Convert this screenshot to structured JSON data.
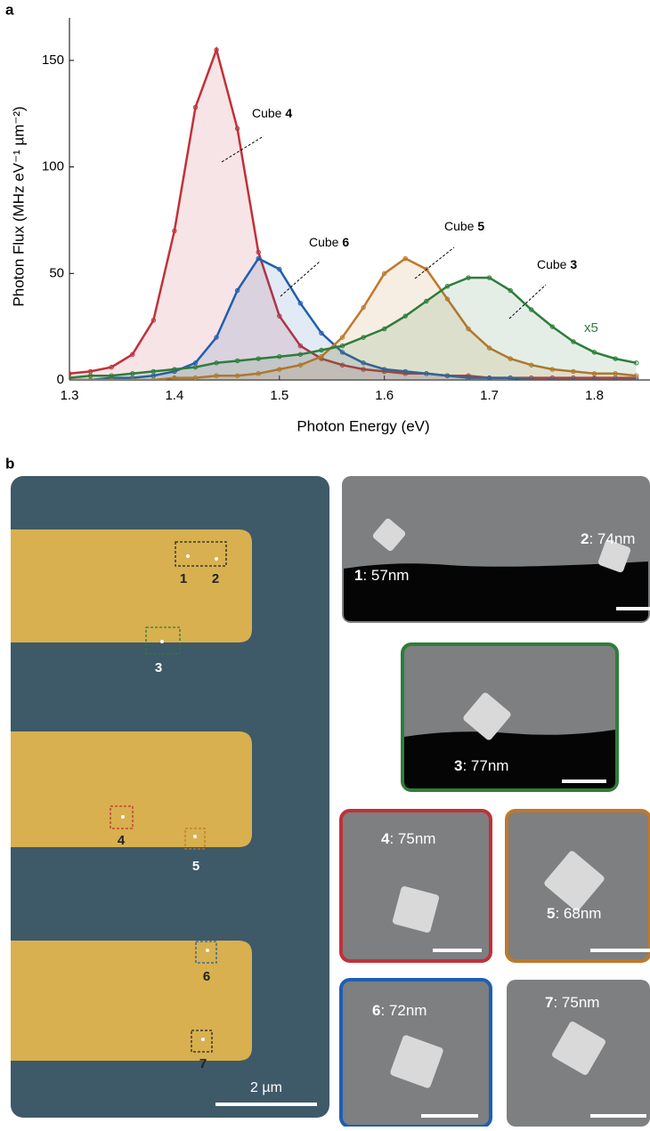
{
  "panel_labels": [
    "a",
    "b"
  ],
  "chart_data": {
    "type": "line",
    "x_label": "Photon Energy (eV)",
    "y_label": "Photon Flux (MHz eV⁻¹ µm⁻²)",
    "xlim": [
      1.3,
      1.853
    ],
    "ylim": [
      0,
      170
    ],
    "xticks": [
      1.3,
      1.4,
      1.5,
      1.6,
      1.7,
      1.8
    ],
    "yticks": [
      0,
      50,
      100,
      150
    ],
    "x": [
      1.3,
      1.32,
      1.34,
      1.36,
      1.38,
      1.4,
      1.42,
      1.44,
      1.46,
      1.48,
      1.5,
      1.52,
      1.54,
      1.56,
      1.58,
      1.6,
      1.62,
      1.64,
      1.66,
      1.68,
      1.7,
      1.72,
      1.74,
      1.76,
      1.78,
      1.8,
      1.82,
      1.84
    ],
    "series": [
      {
        "color": "#c0313a",
        "values": [
          3,
          4,
          6,
          12,
          28,
          70,
          128,
          155,
          118,
          60,
          30,
          16,
          10,
          7,
          5,
          4,
          3,
          3,
          2,
          2,
          1,
          1,
          1,
          1,
          1,
          1,
          1,
          1
        ]
      },
      {
        "color": "#1f5fb0",
        "values": [
          0,
          0,
          1,
          1,
          2,
          4,
          8,
          20,
          42,
          57,
          52,
          36,
          22,
          13,
          8,
          5,
          4,
          3,
          2,
          1,
          1,
          1,
          0,
          0,
          0,
          0,
          0,
          0
        ]
      },
      {
        "color": "#c0782a",
        "values": [
          0,
          0,
          0,
          0,
          0,
          1,
          1,
          2,
          2,
          3,
          5,
          7,
          11,
          20,
          34,
          50,
          57,
          52,
          38,
          24,
          15,
          10,
          7,
          5,
          4,
          3,
          3,
          2
        ]
      },
      {
        "color": "#2e7d3a",
        "values": [
          1,
          2,
          2,
          3,
          4,
          5,
          6,
          8,
          9,
          10,
          11,
          12,
          14,
          16,
          20,
          24,
          30,
          37,
          44,
          48,
          48,
          42,
          33,
          25,
          18,
          13,
          10,
          8
        ]
      }
    ],
    "annotations": [
      {
        "label": "Cube ",
        "number": "4"
      },
      {
        "label": "Cube ",
        "number": "6"
      },
      {
        "label": "Cube ",
        "number": "5"
      },
      {
        "label": "Cube ",
        "number": "3"
      }
    ],
    "scale_note": "x5"
  },
  "overview": {
    "markers": [
      "1",
      "2",
      "3",
      "4",
      "5",
      "6",
      "7"
    ],
    "scale_bar": "2 µm"
  },
  "insets": [
    {
      "number": "1",
      "size": ": 57nm"
    },
    {
      "number": "2",
      "size": ": 74nm"
    },
    {
      "number": "3",
      "size": ": 77nm"
    },
    {
      "number": "4",
      "size": ": 75nm"
    },
    {
      "number": "5",
      "size": ": 68nm"
    },
    {
      "number": "6",
      "size": ": 72nm"
    },
    {
      "number": "7",
      "size": ": 75nm"
    }
  ]
}
